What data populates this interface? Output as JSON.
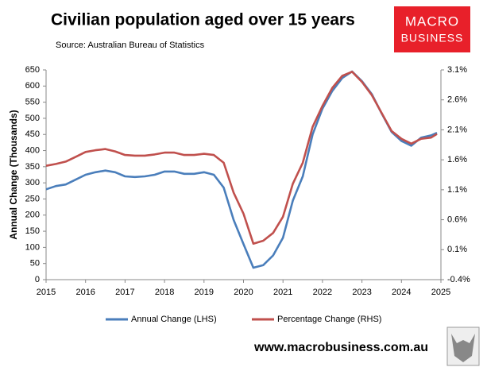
{
  "chart_data": {
    "type": "line",
    "title": "Civilian population aged over 15 years",
    "subtitle": "Source: Australian Bureau of Statistics",
    "ylabel": "Annual Change (Thousands)",
    "x": [
      2015.0,
      2015.25,
      2015.5,
      2015.75,
      2016.0,
      2016.25,
      2016.5,
      2016.75,
      2017.0,
      2017.25,
      2017.5,
      2017.75,
      2018.0,
      2018.25,
      2018.5,
      2018.75,
      2019.0,
      2019.25,
      2019.5,
      2019.75,
      2020.0,
      2020.25,
      2020.5,
      2020.75,
      2021.0,
      2021.25,
      2021.5,
      2021.75,
      2022.0,
      2022.25,
      2022.5,
      2022.75,
      2023.0,
      2023.25,
      2023.5,
      2023.75,
      2024.0,
      2024.25,
      2024.5,
      2024.75,
      2024.9
    ],
    "series": [
      {
        "name": "Annual Change (LHS)",
        "color": "#4a7ebb",
        "values": [
          280,
          290,
          295,
          310,
          325,
          333,
          338,
          333,
          320,
          318,
          320,
          325,
          335,
          335,
          328,
          328,
          333,
          325,
          285,
          185,
          110,
          37,
          45,
          75,
          130,
          245,
          320,
          450,
          530,
          585,
          625,
          645,
          615,
          575,
          515,
          458,
          430,
          415,
          440,
          447,
          455
        ]
      },
      {
        "name": "Percentage Change (RHS)",
        "color": "#c0504d",
        "axis": "y2",
        "values": [
          1.5,
          1.53,
          1.57,
          1.65,
          1.73,
          1.76,
          1.78,
          1.74,
          1.68,
          1.67,
          1.67,
          1.69,
          1.72,
          1.72,
          1.68,
          1.68,
          1.7,
          1.68,
          1.55,
          1.05,
          0.7,
          0.2,
          0.25,
          0.38,
          0.65,
          1.2,
          1.55,
          2.15,
          2.5,
          2.8,
          3.0,
          3.07,
          2.9,
          2.68,
          2.38,
          2.08,
          1.95,
          1.87,
          1.95,
          1.97,
          2.03
        ]
      }
    ],
    "xlim": [
      2015,
      2025
    ],
    "xticks": [
      2015,
      2016,
      2017,
      2018,
      2019,
      2020,
      2021,
      2022,
      2023,
      2024,
      2025
    ],
    "ylim": [
      0,
      650
    ],
    "yticks": [
      0,
      50,
      100,
      150,
      200,
      250,
      300,
      350,
      400,
      450,
      500,
      550,
      600,
      650
    ],
    "y2lim": [
      -0.4,
      3.1
    ],
    "y2ticks": [
      {
        "value": -0.4,
        "label": "-0.4%"
      },
      {
        "value": 0.1,
        "label": "0.1%"
      },
      {
        "value": 0.6,
        "label": "0.6%"
      },
      {
        "value": 1.1,
        "label": "1.1%"
      },
      {
        "value": 1.6,
        "label": "1.6%"
      },
      {
        "value": 2.1,
        "label": "2.1%"
      },
      {
        "value": 2.6,
        "label": "2.6%"
      },
      {
        "value": 3.1,
        "label": "3.1%"
      }
    ],
    "grid": false,
    "legend": "bottom"
  },
  "logo": {
    "line1": "MACRO",
    "line2": "BUSINESS"
  },
  "footer": "www.macrobusiness.com.au"
}
